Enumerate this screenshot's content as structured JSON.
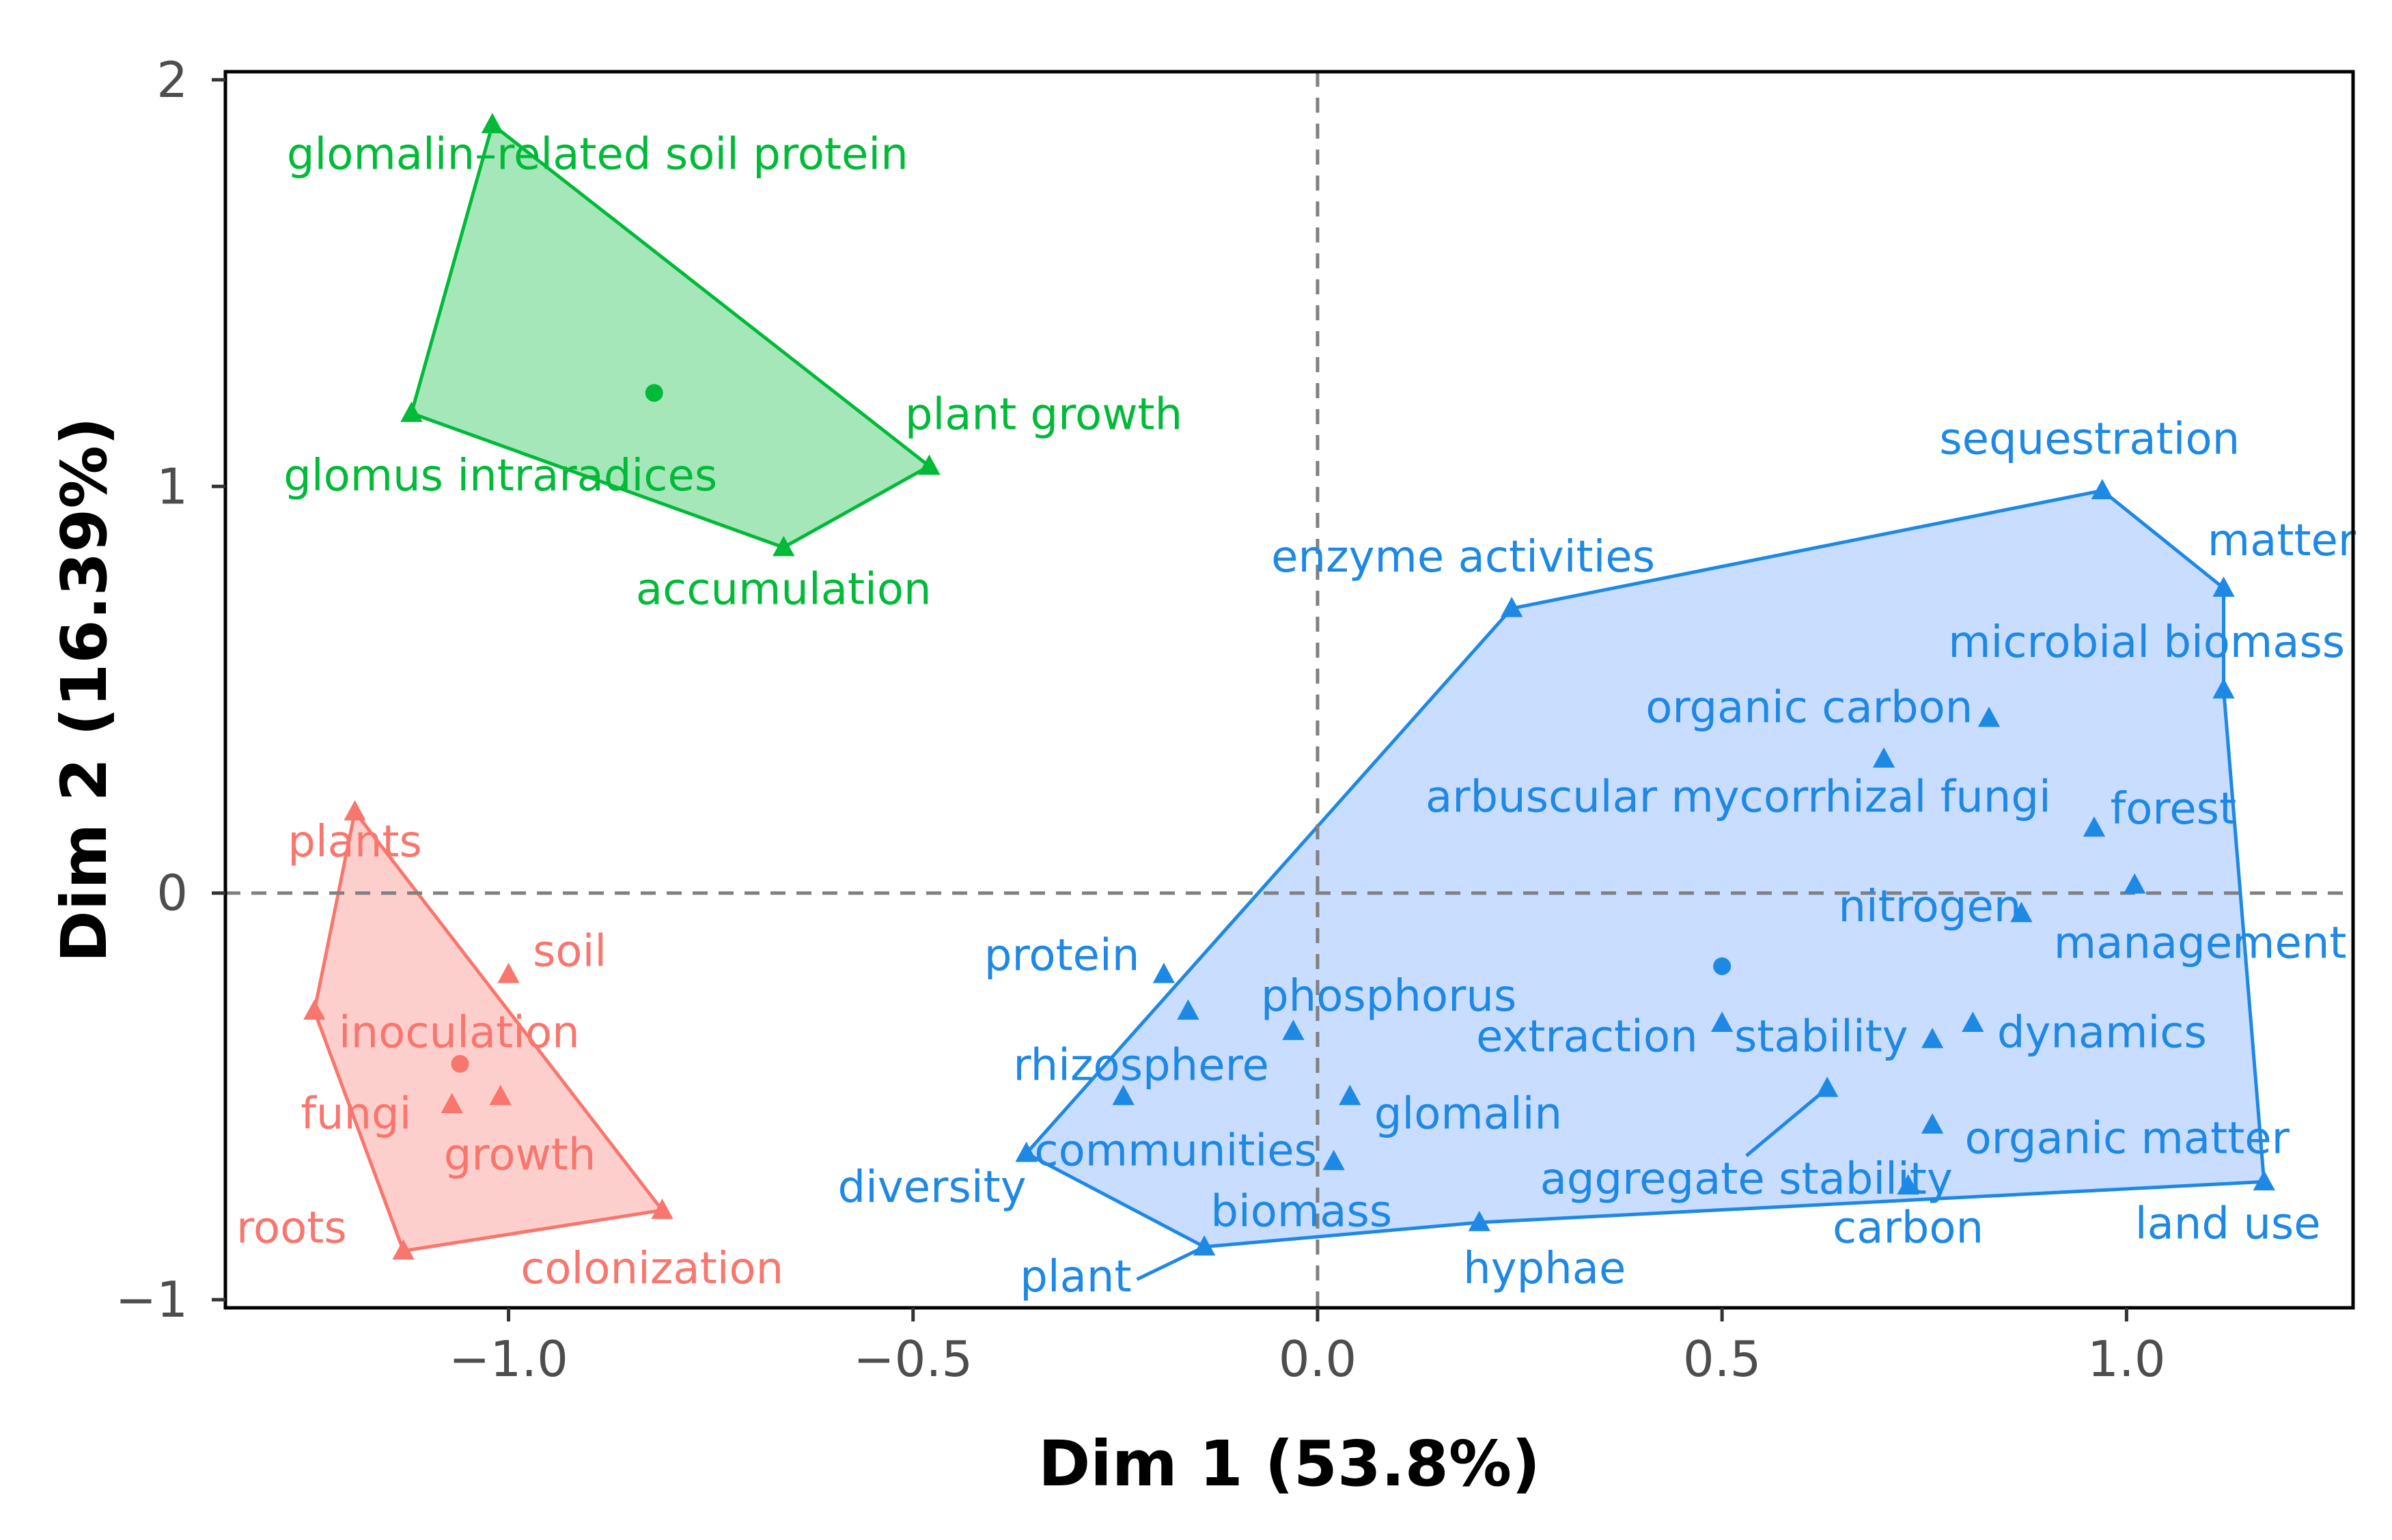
{
  "chart_data": {
    "type": "scatter",
    "xlabel": "Dim 1 (53.8%)",
    "ylabel": "Dim 2 (16.39%)",
    "xlim": [
      -1.35,
      1.28
    ],
    "ylim": [
      -1.02,
      2.02
    ],
    "xticks": [
      {
        "value": -1.0,
        "label": "−1.0"
      },
      {
        "value": -0.5,
        "label": "−0.5"
      },
      {
        "value": 0.0,
        "label": "0.0"
      },
      {
        "value": 0.5,
        "label": "0.5"
      },
      {
        "value": 1.0,
        "label": "1.0"
      }
    ],
    "yticks": [
      {
        "value": -1,
        "label": "−1"
      },
      {
        "value": 0,
        "label": "0"
      },
      {
        "value": 1,
        "label": "1"
      },
      {
        "value": 2,
        "label": "2"
      }
    ],
    "reference_lines": {
      "x": 0,
      "y": 0,
      "style": "dashed",
      "color": "#808080"
    },
    "clusters": [
      {
        "name": "cluster-1",
        "color": "#F8766D",
        "fill": "#F8766D",
        "centroid": [
          -1.06,
          -0.42
        ],
        "hull": [
          "plants",
          "colonization",
          "roots",
          "inoculation"
        ],
        "points": [
          {
            "label": "plants",
            "x": -1.19,
            "y": 0.2,
            "anchor": "middle",
            "dx": 0,
            "dy": -0.08
          },
          {
            "label": "soil",
            "x": -1.0,
            "y": -0.2,
            "anchor": "start",
            "dx": 0.03,
            "dy": 0.05
          },
          {
            "label": "inoculation",
            "x": -1.24,
            "y": -0.29,
            "anchor": "start",
            "dx": 0.03,
            "dy": -0.06
          },
          {
            "label": "fungi",
            "x": -1.07,
            "y": -0.52,
            "anchor": "end",
            "dx": -0.05,
            "dy": -0.03
          },
          {
            "label": "growth",
            "x": -1.01,
            "y": -0.5,
            "anchor": "start",
            "dx": -0.07,
            "dy": -0.15
          },
          {
            "label": "colonization",
            "x": -0.81,
            "y": -0.78,
            "anchor": "end",
            "dx": 0.15,
            "dy": -0.15
          },
          {
            "label": "roots",
            "x": -1.13,
            "y": -0.88,
            "anchor": "end",
            "dx": -0.07,
            "dy": 0.05
          }
        ]
      },
      {
        "name": "cluster-2",
        "color": "#00BA38",
        "fill": "#00BA38",
        "centroid": [
          -0.82,
          1.23
        ],
        "hull": [
          "glomalin-related soil protein",
          "plant growth",
          "accumulation",
          "glomus intraradices"
        ],
        "points": [
          {
            "label": "glomalin–related soil protein",
            "x": -1.02,
            "y": 1.89,
            "anchor": "middle",
            "dx": 0.13,
            "dy": -0.08
          },
          {
            "label": "glomus intraradices",
            "x": -1.12,
            "y": 1.18,
            "anchor": "middle",
            "dx": 0.11,
            "dy": -0.16
          },
          {
            "label": "plant growth",
            "x": -0.48,
            "y": 1.05,
            "anchor": "start",
            "dx": -0.03,
            "dy": 0.12
          },
          {
            "label": "accumulation",
            "x": -0.66,
            "y": 0.85,
            "anchor": "middle",
            "dx": 0.0,
            "dy": -0.11
          }
        ]
      },
      {
        "name": "cluster-3",
        "color": "#1E88E5",
        "fill": "#629DFF",
        "centroid": [
          0.5,
          -0.18
        ],
        "hull": [
          "diversity",
          "enzyme activities",
          "sequestration",
          "matter",
          "microbial biomass",
          "land use",
          "hyphae",
          "plant"
        ],
        "points": [
          {
            "label": "sequestration",
            "x": 0.97,
            "y": 0.99,
            "anchor": "end",
            "dx": 0.17,
            "dy": 0.12
          },
          {
            "label": "matter",
            "x": 1.12,
            "y": 0.75,
            "anchor": "start",
            "dx": -0.02,
            "dy": 0.11
          },
          {
            "label": "enzyme activities",
            "x": 0.24,
            "y": 0.7,
            "anchor": "middle",
            "dx": -0.06,
            "dy": 0.12
          },
          {
            "label": "microbial biomass",
            "x": 1.12,
            "y": 0.5,
            "anchor": "end",
            "dx": 0.15,
            "dy": 0.11
          },
          {
            "label": "organic carbon",
            "x": 0.83,
            "y": 0.43,
            "anchor": "end",
            "dx": -0.02,
            "dy": 0.02
          },
          {
            "label": "arbuscular mycorrhizal fungi",
            "x": 0.7,
            "y": 0.33,
            "anchor": "middle",
            "dx": -0.18,
            "dy": -0.1
          },
          {
            "label": "forest",
            "x": 0.96,
            "y": 0.16,
            "anchor": "start",
            "dx": 0.02,
            "dy": 0.04
          },
          {
            "label": "nitrogen",
            "x": 1.01,
            "y": 0.02,
            "anchor": "end",
            "dx": -0.14,
            "dy": -0.06
          },
          {
            "label": "management",
            "x": 0.87,
            "y": -0.05,
            "anchor": "start",
            "dx": 0.04,
            "dy": -0.08
          },
          {
            "label": "protein",
            "x": -0.19,
            "y": -0.2,
            "anchor": "end",
            "dx": -0.03,
            "dy": 0.04
          },
          {
            "label": "phosphorus",
            "x": -0.03,
            "y": -0.34,
            "anchor": "start",
            "dx": -0.04,
            "dy": 0.08
          },
          {
            "label": "rhizosphere",
            "x": -0.16,
            "y": -0.29,
            "anchor": "end",
            "dx": 0.1,
            "dy": -0.14
          },
          {
            "label": "extraction",
            "x": 0.5,
            "y": -0.32,
            "anchor": "end",
            "dx": -0.03,
            "dy": -0.04
          },
          {
            "label": "stability",
            "x": 0.76,
            "y": -0.36,
            "anchor": "end",
            "dx": -0.03,
            "dy": 0.0
          },
          {
            "label": "dynamics",
            "x": 0.81,
            "y": -0.32,
            "anchor": "start",
            "dx": 0.03,
            "dy": -0.03
          },
          {
            "label": "glomalin",
            "x": 0.04,
            "y": -0.5,
            "anchor": "start",
            "dx": 0.03,
            "dy": -0.05
          },
          {
            "label": "communities",
            "x": -0.24,
            "y": -0.5,
            "anchor": "start",
            "dx": -0.11,
            "dy": -0.14
          },
          {
            "label": "aggregate stability",
            "x": 0.63,
            "y": -0.48,
            "anchor": "middle",
            "dx": -0.1,
            "dy": -0.23,
            "leader": true
          },
          {
            "label": "organic matter",
            "x": 0.76,
            "y": -0.57,
            "anchor": "start",
            "dx": 0.04,
            "dy": -0.04
          },
          {
            "label": "biomass",
            "x": 0.02,
            "y": -0.66,
            "anchor": "middle",
            "dx": -0.04,
            "dy": -0.13
          },
          {
            "label": "carbon",
            "x": 0.73,
            "y": -0.72,
            "anchor": "middle",
            "dx": 0.0,
            "dy": -0.11
          },
          {
            "label": "diversity",
            "x": -0.36,
            "y": -0.64,
            "anchor": "end",
            "dx": 0.0,
            "dy": -0.09
          },
          {
            "label": "land use",
            "x": 1.17,
            "y": -0.71,
            "anchor": "end",
            "dx": 0.07,
            "dy": -0.11
          },
          {
            "label": "hyphae",
            "x": 0.2,
            "y": -0.81,
            "anchor": "start",
            "dx": -0.02,
            "dy": -0.12
          },
          {
            "label": "plant",
            "x": -0.14,
            "y": -0.87,
            "anchor": "end",
            "dx": -0.09,
            "dy": -0.08,
            "leader": true
          }
        ]
      }
    ]
  }
}
